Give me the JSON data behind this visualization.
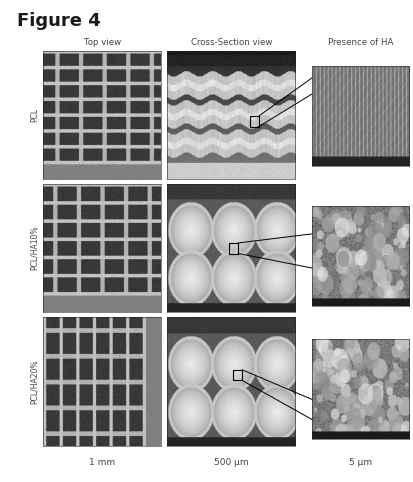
{
  "title": "Figure 4",
  "title_color": "#1a1a1a",
  "title_fontsize": 13,
  "title_fontstyle": "bold",
  "background_color": "#ffffff",
  "col_headers": [
    "Top view",
    "Cross-Section view",
    "Presence of HA"
  ],
  "row_labels": [
    "PCL",
    "PCL/HA10%",
    "PCL/HA20%"
  ],
  "col_scale_labels": [
    "1 mm",
    "500 μm",
    "5 μm"
  ],
  "col_header_color": "#444444",
  "row_label_color": "#444444",
  "scale_label_color": "#444444",
  "figure_width": 4.13,
  "figure_height": 4.82,
  "dpi": 100
}
